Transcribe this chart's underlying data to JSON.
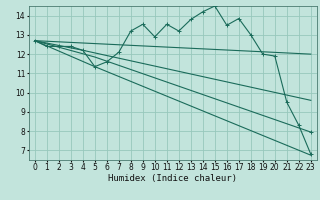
{
  "xlabel": "Humidex (Indice chaleur)",
  "xlim": [
    -0.5,
    23.5
  ],
  "ylim": [
    6.5,
    14.5
  ],
  "xticks": [
    0,
    1,
    2,
    3,
    4,
    5,
    6,
    7,
    8,
    9,
    10,
    11,
    12,
    13,
    14,
    15,
    16,
    17,
    18,
    19,
    20,
    21,
    22,
    23
  ],
  "yticks": [
    7,
    8,
    9,
    10,
    11,
    12,
    13,
    14
  ],
  "background_color": "#c2e4dc",
  "grid_color": "#98c8bc",
  "line_color": "#1a6b5a",
  "line1_x": [
    0,
    1,
    2,
    3,
    4,
    5,
    6,
    7,
    8,
    9,
    10,
    11,
    12,
    13,
    14,
    15,
    16,
    17,
    18,
    19,
    20,
    21,
    22,
    23
  ],
  "line1_y": [
    12.7,
    12.4,
    12.4,
    12.4,
    12.2,
    11.35,
    11.6,
    12.1,
    13.2,
    13.55,
    12.9,
    13.55,
    13.2,
    13.8,
    14.2,
    14.5,
    13.5,
    13.85,
    13.0,
    12.0,
    11.9,
    9.5,
    8.3,
    6.8
  ],
  "line2_x": [
    0,
    23
  ],
  "line2_y": [
    12.7,
    12.0
  ],
  "line3_x": [
    0,
    4,
    23
  ],
  "line3_y": [
    12.7,
    12.2,
    9.6
  ],
  "line4_x": [
    0,
    5,
    23
  ],
  "line4_y": [
    12.7,
    11.85,
    7.95
  ],
  "line5_x": [
    0,
    5,
    23
  ],
  "line5_y": [
    12.7,
    11.35,
    6.75
  ]
}
